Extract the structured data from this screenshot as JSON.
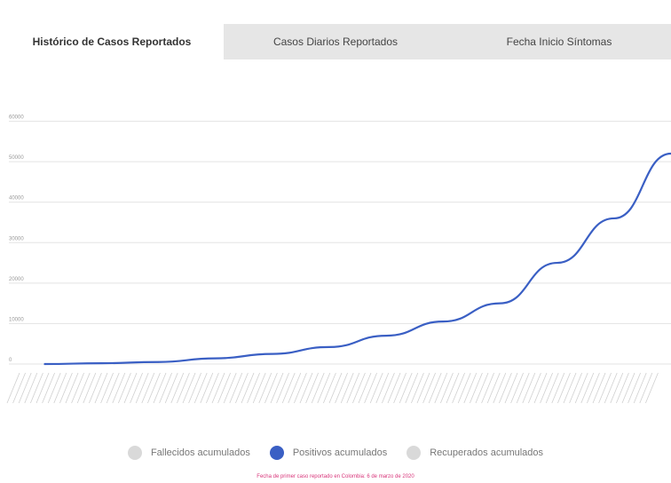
{
  "tabs": [
    {
      "label": "Histórico de Casos Reportados"
    },
    {
      "label": "Casos Diarios Reportados"
    },
    {
      "label": "Fecha Inicio Síntomas"
    }
  ],
  "chart_data": {
    "type": "line",
    "title": "",
    "xlabel": "",
    "ylabel": "",
    "ylim": [
      0,
      70000
    ],
    "yticks": [
      0,
      10000,
      20000,
      30000,
      40000,
      50000,
      60000
    ],
    "ytick_labels": [
      "0",
      "10000",
      "20000",
      "30000",
      "40000",
      "50000",
      "60000"
    ],
    "grid": true,
    "legend_placement": "bottom",
    "x_index": [
      0,
      10,
      20,
      30,
      40,
      50,
      60,
      70,
      80,
      90,
      100,
      110
    ],
    "series": [
      {
        "name": "Fallecidos acumulados",
        "color": "#d9d9d9",
        "values": [],
        "visible": false
      },
      {
        "name": "Positivos acumulados",
        "color": "#3a5fc4",
        "values": [
          0,
          200,
          500,
          1400,
          2500,
          4200,
          7000,
          10500,
          15000,
          25000,
          36000,
          52000
        ],
        "visible": true
      },
      {
        "name": "Recuperados acumulados",
        "color": "#d9d9d9",
        "values": [],
        "visible": false
      }
    ]
  },
  "legend": {
    "items": [
      {
        "label": "Fallecidos acumulados",
        "color": "#d9d9d9"
      },
      {
        "label": "Positivos acumulados",
        "color": "#3a5fc4"
      },
      {
        "label": "Recuperados acumulados",
        "color": "#d9d9d9"
      }
    ]
  },
  "footnote": "Fecha de primer caso reportado en Colombia: 6 de marzo de 2020"
}
